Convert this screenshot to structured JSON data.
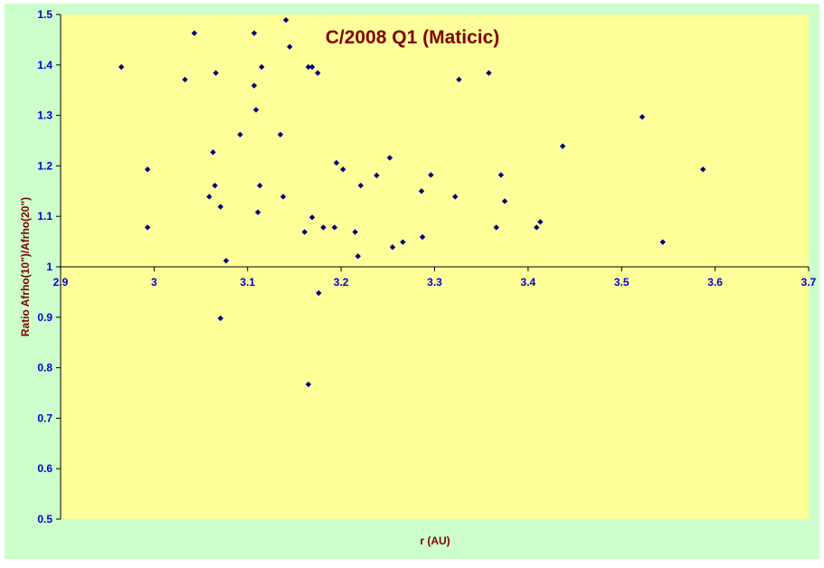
{
  "chart_data": {
    "type": "scatter",
    "title": "C/2008 Q1 (Maticic)",
    "xlabel": "r (AU)",
    "ylabel": "Ratio Afrho(10\")/Afrho(20\")",
    "xlim": [
      2.9,
      3.7
    ],
    "ylim": [
      0.5,
      1.5
    ],
    "xticks": [
      "2.9",
      "3",
      "3.1",
      "3.2",
      "3.3",
      "3.4",
      "3.5",
      "3.6",
      "3.7"
    ],
    "yticks": [
      "0.5",
      "0.6",
      "0.7",
      "0.8",
      "0.9",
      "1",
      "1.1",
      "1.2",
      "1.3",
      "1.4",
      "1.5"
    ],
    "grid": false,
    "legend": "none",
    "colors": {
      "outer_background": "#ccffcc",
      "plot_background": "#ffff99",
      "marker": "#000080",
      "title": "#800000",
      "axis_label": "#800000",
      "tick_label": "#0000cc"
    },
    "points": [
      [
        2.965,
        1.396
      ],
      [
        2.993,
        1.193
      ],
      [
        2.993,
        1.078
      ],
      [
        3.033,
        1.371
      ],
      [
        3.043,
        1.463
      ],
      [
        3.059,
        1.139
      ],
      [
        3.063,
        1.227
      ],
      [
        3.065,
        1.161
      ],
      [
        3.066,
        1.384
      ],
      [
        3.071,
        1.119
      ],
      [
        3.071,
        0.898
      ],
      [
        3.077,
        1.012
      ],
      [
        3.092,
        1.262
      ],
      [
        3.107,
        1.463
      ],
      [
        3.107,
        1.359
      ],
      [
        3.109,
        1.311
      ],
      [
        3.111,
        1.108
      ],
      [
        3.113,
        1.161
      ],
      [
        3.115,
        1.396
      ],
      [
        3.135,
        1.262
      ],
      [
        3.138,
        1.139
      ],
      [
        3.141,
        1.489
      ],
      [
        3.145,
        1.436
      ],
      [
        3.161,
        1.069
      ],
      [
        3.165,
        0.767
      ],
      [
        3.165,
        1.396
      ],
      [
        3.169,
        1.396
      ],
      [
        3.169,
        1.098
      ],
      [
        3.175,
        1.384
      ],
      [
        3.176,
        0.948
      ],
      [
        3.181,
        1.078
      ],
      [
        3.193,
        1.078
      ],
      [
        3.195,
        1.206
      ],
      [
        3.202,
        1.193
      ],
      [
        3.215,
        1.069
      ],
      [
        3.218,
        1.021
      ],
      [
        3.221,
        1.161
      ],
      [
        3.238,
        1.181
      ],
      [
        3.252,
        1.216
      ],
      [
        3.255,
        1.039
      ],
      [
        3.266,
        1.049
      ],
      [
        3.286,
        1.15
      ],
      [
        3.287,
        1.059
      ],
      [
        3.296,
        1.182
      ],
      [
        3.322,
        1.139
      ],
      [
        3.326,
        1.371
      ],
      [
        3.358,
        1.384
      ],
      [
        3.366,
        1.078
      ],
      [
        3.371,
        1.182
      ],
      [
        3.375,
        1.13
      ],
      [
        3.409,
        1.078
      ],
      [
        3.413,
        1.089
      ],
      [
        3.437,
        1.239
      ],
      [
        3.522,
        1.297
      ],
      [
        3.544,
        1.049
      ],
      [
        3.587,
        1.193
      ]
    ]
  }
}
